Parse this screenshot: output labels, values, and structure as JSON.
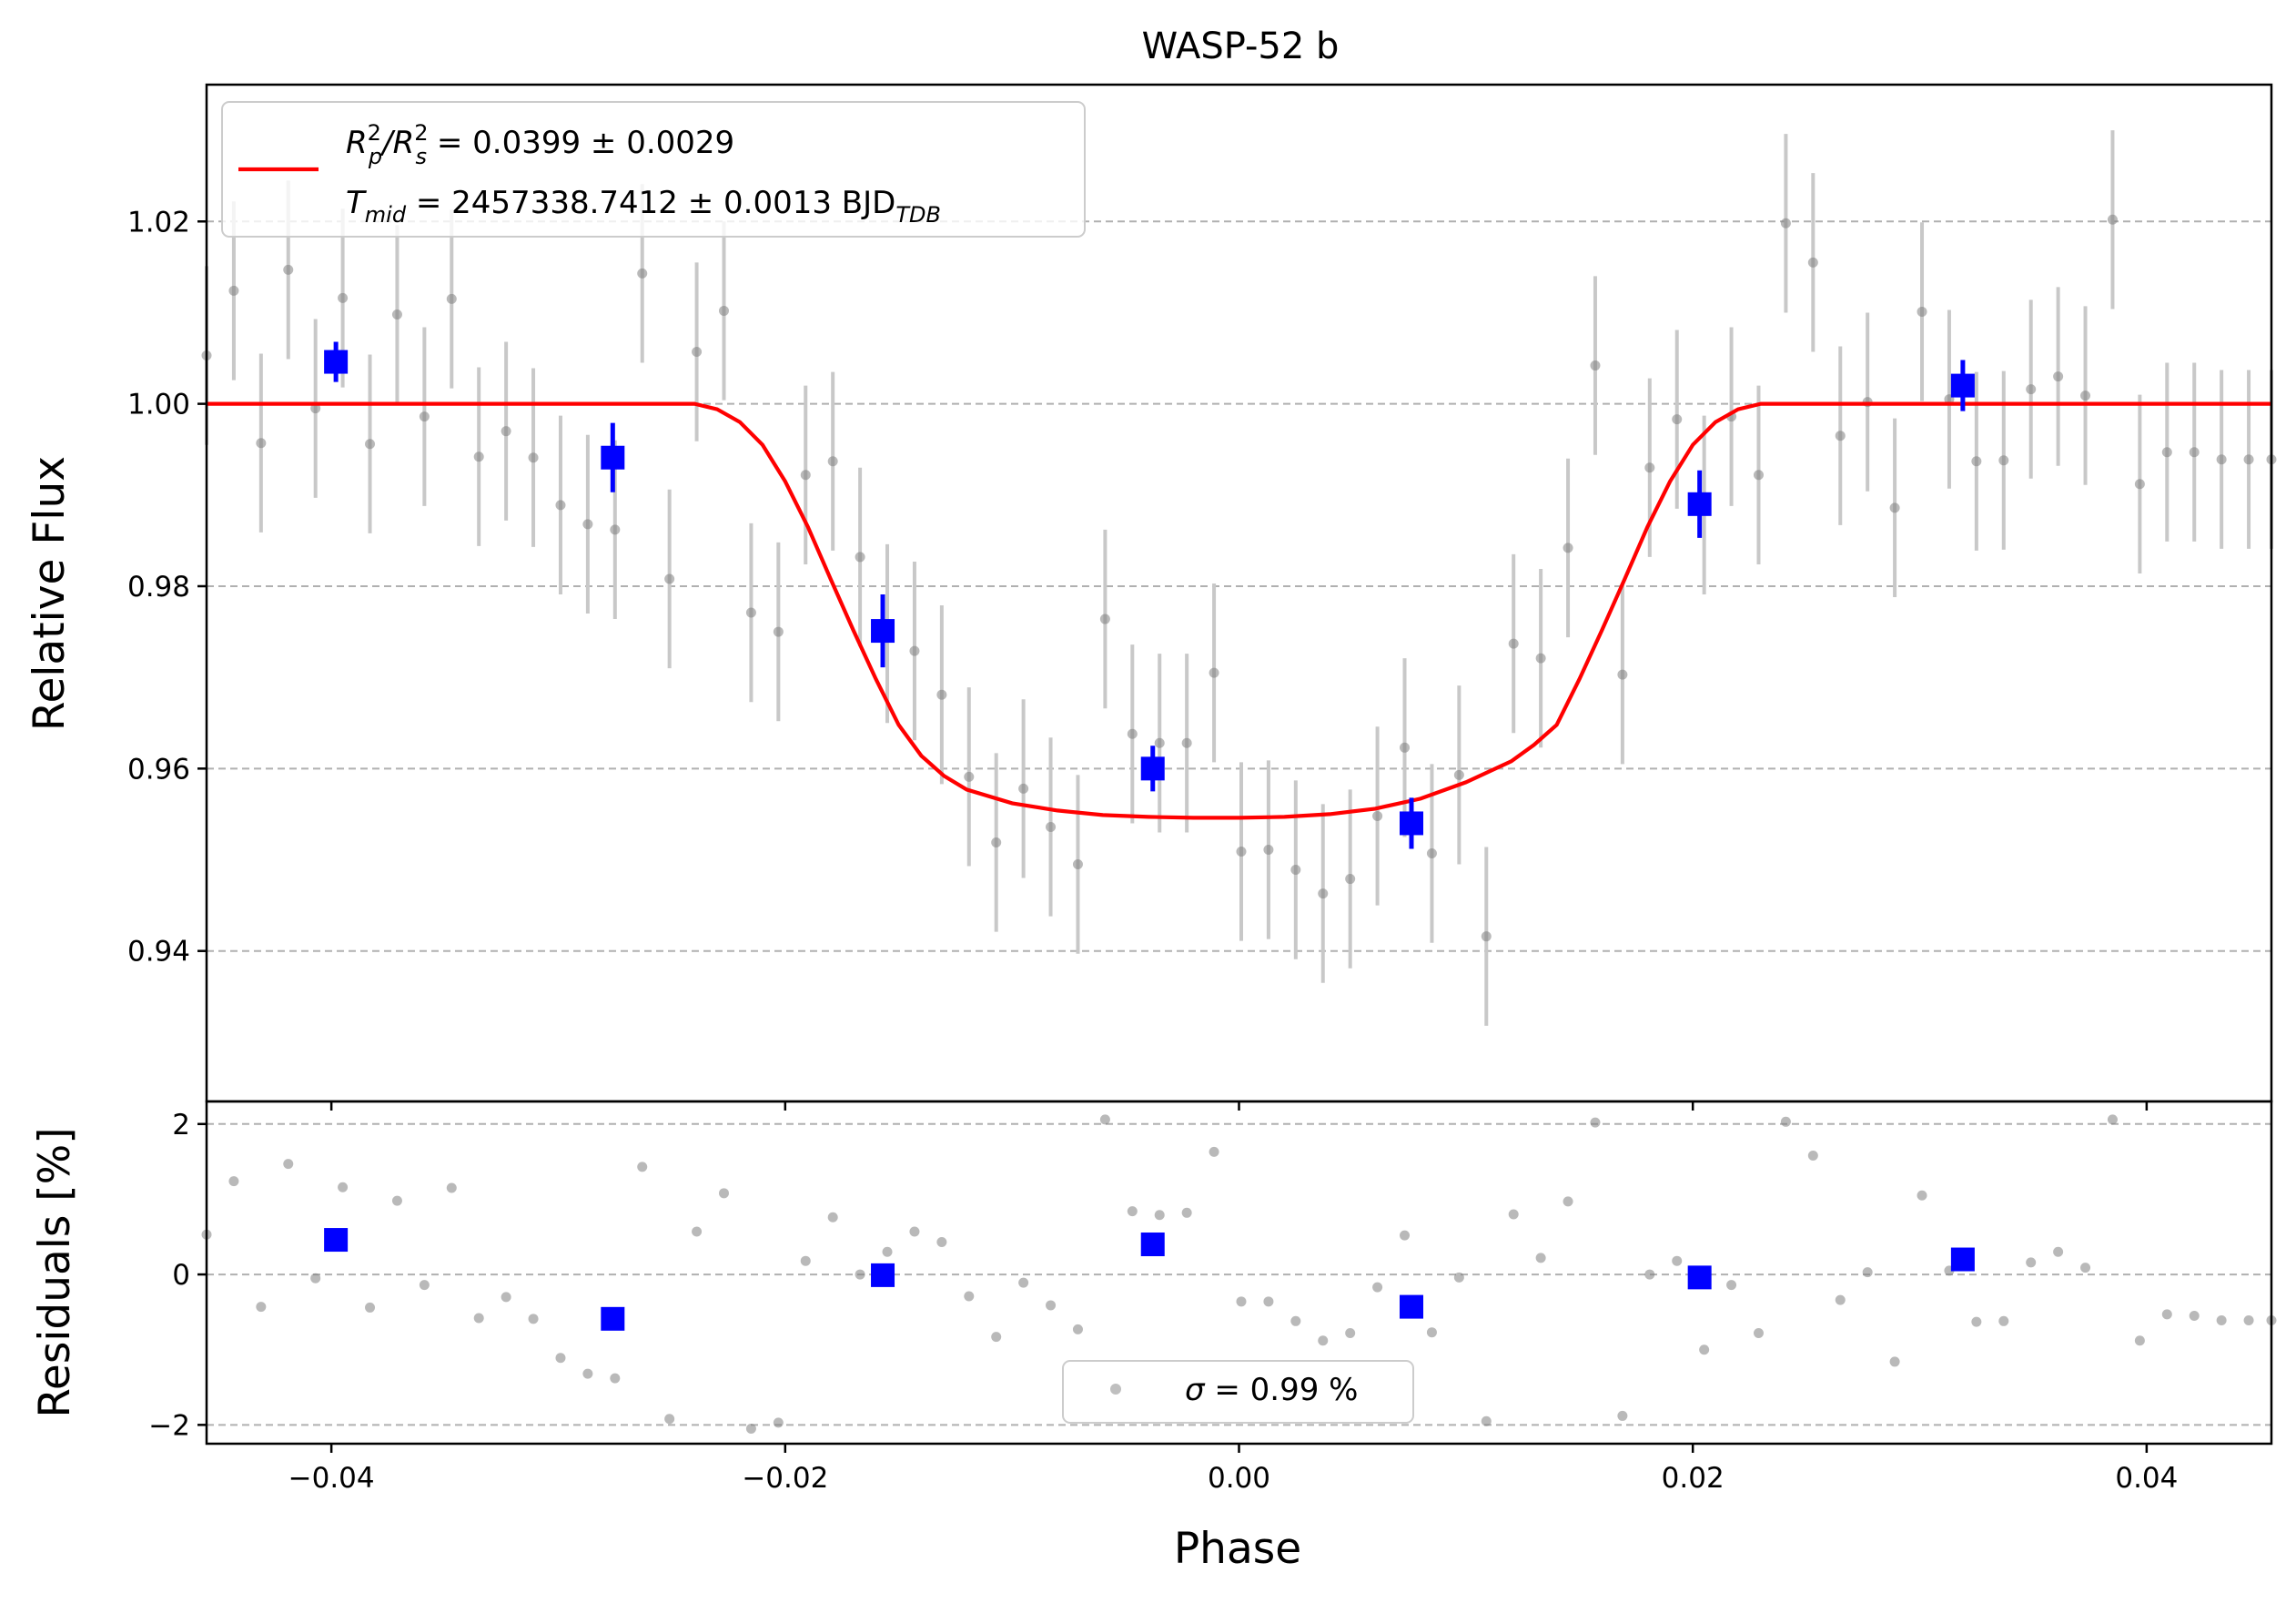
{
  "chart_data": [
    {
      "type": "scatter",
      "title": "WASP-52 b",
      "xlabel": "Phase",
      "ylabel": "Relative Flux",
      "xlim": [
        -0.0455,
        0.0455
      ],
      "ylim": [
        0.9235,
        1.035
      ],
      "grid": "horizontal dashed",
      "yticks": [
        0.94,
        0.96,
        0.98,
        1.0,
        1.02
      ],
      "ytick_labels": [
        "0.94",
        "0.96",
        "0.98",
        "1.00",
        "1.02"
      ],
      "legend": {
        "placement": "top-left",
        "line1_lhs_base": "R",
        "line1_lhs_sup": "2",
        "line1_lhs_sub": "p",
        "line1_lhs_slash": "/R",
        "line1_lhs_sup2": "2",
        "line1_lhs_sub2": "s",
        "line1_rhs": " = 0.0399 ± 0.0029",
        "line2_lhs_base": "T",
        "line2_lhs_sub": "mid",
        "line2_rhs": " = 2457338.7412 ± 0.0013 BJD",
        "line2_rhs_sub": "TDB"
      },
      "colors": {
        "model": "#ff0000",
        "binned": "#0000ff",
        "raw": "#808080",
        "errbar": "#c8c8c8"
      },
      "model": {
        "x": [
          -0.0455,
          -0.024,
          -0.023,
          -0.022,
          -0.021,
          -0.02,
          -0.019,
          -0.018,
          -0.017,
          -0.016,
          -0.015,
          -0.014,
          -0.013,
          -0.012,
          -0.01,
          -0.008,
          -0.006,
          -0.004,
          -0.002,
          0.0,
          0.002,
          0.004,
          0.006,
          0.008,
          0.01,
          0.012,
          0.013,
          0.014,
          0.015,
          0.016,
          0.017,
          0.018,
          0.019,
          0.02,
          0.021,
          0.022,
          0.023,
          0.024,
          0.0455
        ],
        "y": [
          1.0,
          1.0,
          0.9994,
          0.998,
          0.9955,
          0.9915,
          0.9865,
          0.9808,
          0.9752,
          0.9698,
          0.9648,
          0.9614,
          0.9592,
          0.9577,
          0.9562,
          0.9554,
          0.9549,
          0.9547,
          0.9546,
          0.9546,
          0.9547,
          0.955,
          0.9556,
          0.9567,
          0.9585,
          0.9608,
          0.9626,
          0.9648,
          0.9698,
          0.9752,
          0.9808,
          0.9865,
          0.9915,
          0.9955,
          0.998,
          0.9994,
          1.0,
          1.0,
          1.0
        ]
      },
      "raw": {
        "x": [
          -0.0455,
          -0.0443,
          -0.0431,
          -0.0419,
          -0.0407,
          -0.0395,
          -0.0383,
          -0.0371,
          -0.0359,
          -0.0347,
          -0.0335,
          -0.0323,
          -0.0311,
          -0.0299,
          -0.0287,
          -0.0275,
          -0.0263,
          -0.0251,
          -0.0239,
          -0.0227,
          -0.0215,
          -0.0203,
          -0.0191,
          -0.0179,
          -0.0167,
          -0.0155,
          -0.0143,
          -0.0131,
          -0.0119,
          -0.0107,
          -0.0095,
          -0.0083,
          -0.0071,
          -0.0059,
          -0.0047,
          -0.0035,
          -0.0023,
          -0.0011,
          0.0001,
          0.0013,
          0.0025,
          0.0037,
          0.0049,
          0.0061,
          0.0073,
          0.0085,
          0.0097,
          0.0109,
          0.0121,
          0.0133,
          0.0145,
          0.0157,
          0.0169,
          0.0181,
          0.0193,
          0.0205,
          0.0217,
          0.0229,
          0.0241,
          0.0253,
          0.0265,
          0.0277,
          0.0289,
          0.0301,
          0.0313,
          0.0325,
          0.0337,
          0.0349,
          0.0361,
          0.0373,
          0.0385,
          0.0397,
          0.0409,
          0.0421,
          0.0433,
          0.0445,
          0.0455
        ],
        "y": [
          1.0053,
          1.0124,
          0.9957,
          1.0147,
          0.9995,
          1.0116,
          0.9956,
          1.0098,
          0.9986,
          1.0115,
          0.9942,
          0.997,
          0.9941,
          0.9889,
          0.9868,
          0.9862,
          1.0143,
          0.9808,
          1.0057,
          1.0102,
          0.9771,
          0.975,
          0.9922,
          0.9937,
          0.9832,
          0.9748,
          0.9729,
          0.9681,
          0.9591,
          0.9519,
          0.9578,
          0.9536,
          0.9495,
          0.9764,
          0.9638,
          0.9628,
          0.9628,
          0.9705,
          0.9509,
          0.9511,
          0.9489,
          0.9463,
          0.9479,
          0.9548,
          0.9623,
          0.9507,
          0.9593,
          0.9416,
          0.9737,
          0.9721,
          0.9842,
          1.0042,
          0.9703,
          0.993,
          0.9983,
          0.9889,
          0.9986,
          0.9922,
          1.0198,
          1.0155,
          0.9965,
          1.0002,
          0.9886,
          1.0101,
          1.0005,
          0.9937,
          0.9938,
          1.0016,
          1.003,
          1.0009,
          1.0202,
          0.9912,
          0.9947,
          0.9947,
          0.9939,
          0.9939,
          0.9939
        ],
        "yerr": 0.0098
      },
      "binned": {
        "x": [
          -0.0398,
          -0.0276,
          -0.0157,
          -0.0038,
          0.0076,
          0.0203,
          0.0319
        ],
        "y": [
          1.0046,
          0.9941,
          0.9751,
          0.96,
          0.954,
          0.989,
          1.002
        ],
        "yerr": [
          0.0022,
          0.0038,
          0.004,
          0.0025,
          0.0028,
          0.0037,
          0.0028
        ]
      }
    },
    {
      "type": "scatter",
      "xlabel": "Phase",
      "ylabel": "Residuals [%]",
      "xlim": [
        -0.0455,
        0.0455
      ],
      "ylim": [
        -2.25,
        2.3
      ],
      "grid": "horizontal dashed",
      "xticks": [
        -0.04,
        -0.02,
        0.0,
        0.02,
        0.04
      ],
      "xtick_labels": [
        "−0.04",
        "−0.02",
        "0.00",
        "0.02",
        "0.04"
      ],
      "yticks": [
        -2,
        0,
        2
      ],
      "ytick_labels": [
        "−2",
        "0",
        "2"
      ],
      "legend": {
        "placement": "bottom-center",
        "label_sigma": "σ",
        "label_rest": " = 0.99 %"
      },
      "raw": {
        "x": [
          -0.0455,
          -0.0443,
          -0.0431,
          -0.0419,
          -0.0407,
          -0.0395,
          -0.0383,
          -0.0371,
          -0.0359,
          -0.0347,
          -0.0335,
          -0.0323,
          -0.0311,
          -0.0299,
          -0.0287,
          -0.0275,
          -0.0263,
          -0.0251,
          -0.0239,
          -0.0227,
          -0.0215,
          -0.0203,
          -0.0191,
          -0.0179,
          -0.0167,
          -0.0155,
          -0.0143,
          -0.0131,
          -0.0119,
          -0.0107,
          -0.0095,
          -0.0083,
          -0.0071,
          -0.0059,
          -0.0047,
          -0.0035,
          -0.0023,
          -0.0011,
          0.0001,
          0.0013,
          0.0025,
          0.0037,
          0.0049,
          0.0061,
          0.0073,
          0.0085,
          0.0097,
          0.0109,
          0.0121,
          0.0133,
          0.0145,
          0.0157,
          0.0169,
          0.0181,
          0.0193,
          0.0205,
          0.0217,
          0.0229,
          0.0241,
          0.0253,
          0.0265,
          0.0277,
          0.0289,
          0.0301,
          0.0313,
          0.0325,
          0.0337,
          0.0349,
          0.0361,
          0.0373,
          0.0385,
          0.0397,
          0.0409,
          0.0421,
          0.0433,
          0.0445,
          0.0455
        ],
        "y": [
          0.53,
          1.24,
          -0.43,
          1.47,
          -0.05,
          1.16,
          -0.44,
          0.98,
          -0.14,
          1.15,
          -0.58,
          -0.3,
          -0.59,
          -1.11,
          -1.32,
          -1.38,
          1.43,
          -1.92,
          0.57,
          1.08,
          -2.05,
          -1.97,
          0.18,
          0.76,
          0.0,
          0.3,
          0.57,
          0.43,
          -0.29,
          -0.83,
          -0.11,
          -0.41,
          -0.73,
          2.06,
          0.84,
          0.79,
          0.82,
          1.63,
          -0.36,
          -0.36,
          -0.62,
          -0.88,
          -0.78,
          -0.17,
          0.52,
          -0.77,
          -0.04,
          -1.95,
          0.8,
          0.22,
          0.97,
          2.02,
          -1.88,
          0.0,
          0.18,
          -1.0,
          -0.14,
          -0.78,
          2.03,
          1.58,
          -0.34,
          0.03,
          -1.16,
          1.05,
          0.05,
          -0.63,
          -0.62,
          0.16,
          0.3,
          0.09,
          2.06,
          -0.88,
          -0.53,
          -0.55,
          -0.61,
          -0.61,
          -0.61
        ]
      },
      "binned": {
        "x": [
          -0.0398,
          -0.0276,
          -0.0157,
          -0.0038,
          0.0076,
          0.0203,
          0.0319
        ],
        "y": [
          0.46,
          -0.59,
          -0.01,
          0.4,
          -0.43,
          -0.04,
          0.2
        ]
      }
    }
  ]
}
